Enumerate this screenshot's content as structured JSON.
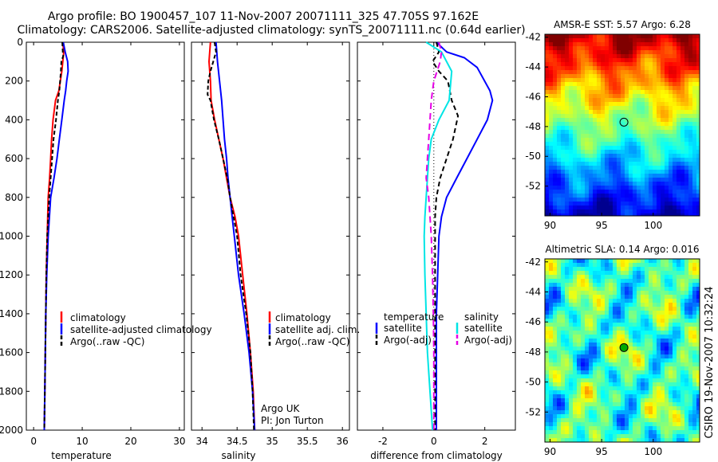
{
  "title": {
    "line1": "Argo profile: BO 1900457_107 11-Nov-2007 20071111_325 47.705S 97.162E",
    "line2": "Climatology: CARS2006. Satellite-adjusted climatology: synTS_20071111.nc (0.64d earlier)"
  },
  "side_text": "CSIRO 19-Nov-2007 10:32:24",
  "colors": {
    "climatology": "#ff0000",
    "satellite": "#0000ff",
    "argo": "#000000",
    "salinity_satellite": "#00e5e5",
    "salinity_argo": "#e600e6"
  },
  "chart_data": [
    {
      "type": "line",
      "name": "temperature-profile",
      "xlabel": "temperature",
      "ylabel": "",
      "xlim": [
        -1.5,
        31
      ],
      "ylim": [
        2000,
        0
      ],
      "xticks": [
        0,
        10,
        20,
        30
      ],
      "yticks": [
        0,
        200,
        400,
        600,
        800,
        1000,
        1200,
        1400,
        1600,
        1800,
        2000
      ],
      "legend": {
        "position": "lower-right",
        "entries": [
          "climatology",
          "satellite-adjusted climatology",
          "Argo(..raw -QC)"
        ]
      },
      "series": [
        {
          "name": "climatology",
          "color": "#ff0000",
          "dash": "",
          "points": [
            [
              6.0,
              0
            ],
            [
              6.2,
              50
            ],
            [
              6.0,
              100
            ],
            [
              5.8,
              150
            ],
            [
              5.5,
              200
            ],
            [
              5.2,
              250
            ],
            [
              4.5,
              300
            ],
            [
              4.0,
              400
            ],
            [
              3.7,
              500
            ],
            [
              3.5,
              600
            ],
            [
              3.3,
              700
            ],
            [
              3.0,
              800
            ],
            [
              2.8,
              1000
            ],
            [
              2.6,
              1200
            ],
            [
              2.5,
              1400
            ],
            [
              2.4,
              1600
            ],
            [
              2.3,
              1800
            ],
            [
              2.2,
              2000
            ]
          ]
        },
        {
          "name": "satellite-adjusted climatology",
          "color": "#0000ff",
          "dash": "",
          "points": [
            [
              6.1,
              0
            ],
            [
              6.5,
              50
            ],
            [
              7.0,
              100
            ],
            [
              7.1,
              150
            ],
            [
              6.8,
              200
            ],
            [
              6.6,
              250
            ],
            [
              6.3,
              300
            ],
            [
              5.8,
              400
            ],
            [
              5.3,
              500
            ],
            [
              4.8,
              600
            ],
            [
              4.2,
              700
            ],
            [
              3.5,
              800
            ],
            [
              3.0,
              1000
            ],
            [
              2.7,
              1200
            ],
            [
              2.5,
              1400
            ],
            [
              2.4,
              1600
            ],
            [
              2.3,
              1800
            ],
            [
              2.2,
              2000
            ]
          ]
        },
        {
          "name": "Argo(..raw -QC)",
          "color": "#000000",
          "dash": "5,3",
          "points": [
            [
              5.9,
              0
            ],
            [
              6.0,
              50
            ],
            [
              6.1,
              70
            ],
            [
              5.7,
              100
            ],
            [
              5.6,
              150
            ],
            [
              5.3,
              250
            ],
            [
              5.0,
              300
            ],
            [
              4.6,
              400
            ],
            [
              4.1,
              500
            ],
            [
              3.8,
              600
            ],
            [
              3.5,
              700
            ],
            [
              3.2,
              800
            ],
            [
              2.8,
              1000
            ],
            [
              2.6,
              1200
            ],
            [
              2.5,
              1400
            ],
            [
              2.4,
              1600
            ],
            [
              2.3,
              1800
            ],
            [
              2.2,
              2000
            ]
          ]
        }
      ]
    },
    {
      "type": "line",
      "name": "salinity-profile",
      "xlabel": "salinity",
      "ylabel": "",
      "xlim": [
        33.85,
        36.1
      ],
      "ylim": [
        2000,
        0
      ],
      "xticks": [
        34,
        34.5,
        35,
        35.5,
        36
      ],
      "legend": {
        "position": "lower-right",
        "entries": [
          "climatology",
          "satellite adj. clim.",
          "Argo(..raw -QC)"
        ]
      },
      "annotations": [
        "Argo UK",
        "PI: Jon Turton"
      ],
      "series": [
        {
          "name": "climatology",
          "color": "#ff0000",
          "dash": "",
          "points": [
            [
              34.12,
              0
            ],
            [
              34.1,
              100
            ],
            [
              34.12,
              200
            ],
            [
              34.13,
              300
            ],
            [
              34.18,
              400
            ],
            [
              34.24,
              500
            ],
            [
              34.3,
              600
            ],
            [
              34.35,
              700
            ],
            [
              34.4,
              800
            ],
            [
              34.47,
              900
            ],
            [
              34.52,
              1000
            ],
            [
              34.58,
              1200
            ],
            [
              34.64,
              1400
            ],
            [
              34.69,
              1600
            ],
            [
              34.73,
              1800
            ],
            [
              34.75,
              2000
            ]
          ]
        },
        {
          "name": "satellite adj. clim.",
          "color": "#0000ff",
          "dash": "",
          "points": [
            [
              34.2,
              0
            ],
            [
              34.22,
              100
            ],
            [
              34.25,
              200
            ],
            [
              34.28,
              300
            ],
            [
              34.3,
              400
            ],
            [
              34.32,
              500
            ],
            [
              34.35,
              600
            ],
            [
              34.37,
              700
            ],
            [
              34.4,
              800
            ],
            [
              34.43,
              900
            ],
            [
              34.46,
              1000
            ],
            [
              34.52,
              1200
            ],
            [
              34.6,
              1400
            ],
            [
              34.67,
              1600
            ],
            [
              34.72,
              1800
            ],
            [
              34.75,
              2000
            ]
          ]
        },
        {
          "name": "Argo(..raw -QC)",
          "color": "#000000",
          "dash": "5,3",
          "points": [
            [
              34.18,
              0
            ],
            [
              34.2,
              50
            ],
            [
              34.16,
              100
            ],
            [
              34.12,
              150
            ],
            [
              34.09,
              200
            ],
            [
              34.08,
              270
            ],
            [
              34.12,
              300
            ],
            [
              34.17,
              400
            ],
            [
              34.24,
              500
            ],
            [
              34.3,
              600
            ],
            [
              34.36,
              700
            ],
            [
              34.4,
              800
            ],
            [
              34.45,
              900
            ],
            [
              34.5,
              1000
            ],
            [
              34.55,
              1200
            ],
            [
              34.63,
              1400
            ],
            [
              34.69,
              1600
            ],
            [
              34.72,
              1800
            ],
            [
              34.74,
              2000
            ]
          ]
        }
      ]
    },
    {
      "type": "line",
      "name": "difference-profile",
      "xlabel": "difference from climatology",
      "ylabel": "",
      "xlim": [
        -3.0,
        3.2
      ],
      "ylim": [
        2000,
        0
      ],
      "xticks": [
        -2,
        0,
        2
      ],
      "legend": {
        "position": "lower-right",
        "groups": [
          "temperature",
          "salinity"
        ],
        "entries": [
          "satellite",
          "Argo(-adj)",
          "satellite",
          "Argo(-adj)"
        ]
      },
      "series": [
        {
          "name": "temperature satellite",
          "color": "#0000ff",
          "dash": "",
          "points": [
            [
              0.1,
              0
            ],
            [
              0.5,
              50
            ],
            [
              1.2,
              80
            ],
            [
              1.7,
              130
            ],
            [
              2.2,
              250
            ],
            [
              2.3,
              300
            ],
            [
              2.1,
              400
            ],
            [
              1.7,
              500
            ],
            [
              1.3,
              600
            ],
            [
              0.9,
              700
            ],
            [
              0.5,
              800
            ],
            [
              0.3,
              900
            ],
            [
              0.2,
              1000
            ],
            [
              0.15,
              1200
            ],
            [
              0.1,
              1400
            ],
            [
              0.1,
              1600
            ],
            [
              0.1,
              1800
            ],
            [
              0.1,
              2000
            ]
          ]
        },
        {
          "name": "temperature Argo(-adj)",
          "color": "#000000",
          "dash": "6,4",
          "points": [
            [
              0.1,
              0
            ],
            [
              0.2,
              50
            ],
            [
              -0.05,
              100
            ],
            [
              0.2,
              150
            ],
            [
              0.55,
              200
            ],
            [
              0.7,
              300
            ],
            [
              0.95,
              380
            ],
            [
              0.75,
              500
            ],
            [
              0.5,
              600
            ],
            [
              0.25,
              700
            ],
            [
              0.1,
              800
            ],
            [
              0.05,
              900
            ],
            [
              0.05,
              1000
            ],
            [
              0.05,
              1200
            ],
            [
              0.05,
              1400
            ],
            [
              0.05,
              1600
            ],
            [
              0.05,
              1800
            ],
            [
              0.05,
              2000
            ]
          ]
        },
        {
          "name": "salinity satellite",
          "color": "#00e5e5",
          "dash": "",
          "points": [
            [
              -0.3,
              0
            ],
            [
              0.3,
              50
            ],
            [
              0.7,
              150
            ],
            [
              0.6,
              300
            ],
            [
              0.2,
              400
            ],
            [
              -0.1,
              500
            ],
            [
              -0.2,
              600
            ],
            [
              -0.25,
              700
            ],
            [
              -0.3,
              800
            ],
            [
              -0.35,
              900
            ],
            [
              -0.38,
              1000
            ],
            [
              -0.35,
              1200
            ],
            [
              -0.3,
              1400
            ],
            [
              -0.25,
              1600
            ],
            [
              -0.15,
              1800
            ],
            [
              -0.05,
              2000
            ]
          ]
        },
        {
          "name": "salinity Argo(-adj)",
          "color": "#e600e6",
          "dash": "8,5",
          "points": [
            [
              0.2,
              0
            ],
            [
              0.3,
              50
            ],
            [
              0.25,
              100
            ],
            [
              0.0,
              200
            ],
            [
              -0.1,
              300
            ],
            [
              -0.15,
              400
            ],
            [
              -0.2,
              500
            ],
            [
              -0.25,
              600
            ],
            [
              -0.3,
              700
            ],
            [
              -0.2,
              800
            ],
            [
              -0.15,
              900
            ],
            [
              -0.1,
              1000
            ],
            [
              -0.05,
              1200
            ],
            [
              -0.02,
              1400
            ],
            [
              0.0,
              1600
            ],
            [
              0.0,
              1800
            ],
            [
              0.0,
              2000
            ]
          ]
        }
      ]
    },
    {
      "type": "heatmap",
      "name": "sst-map",
      "title": "AMSR-E SST: 5.57 Argo: 6.28",
      "xlim": [
        89.5,
        104.5
      ],
      "ylim": [
        -54,
        -41.8
      ],
      "xticks": [
        90,
        95,
        100
      ],
      "yticks": [
        -42,
        -44,
        -46,
        -48,
        -50,
        -52
      ],
      "marker": {
        "lon": 97.162,
        "lat": -47.705
      },
      "colormap": "jet"
    },
    {
      "type": "heatmap",
      "name": "sla-map",
      "title": "Altimetric SLA: 0.14 Argo: 0.016",
      "xlim": [
        89.5,
        104.5
      ],
      "ylim": [
        -54,
        -41.8
      ],
      "xticks": [
        90,
        95,
        100
      ],
      "yticks": [
        -42,
        -44,
        -46,
        -48,
        -50,
        -52
      ],
      "marker": {
        "lon": 97.162,
        "lat": -47.705
      },
      "colormap": "jet"
    }
  ]
}
